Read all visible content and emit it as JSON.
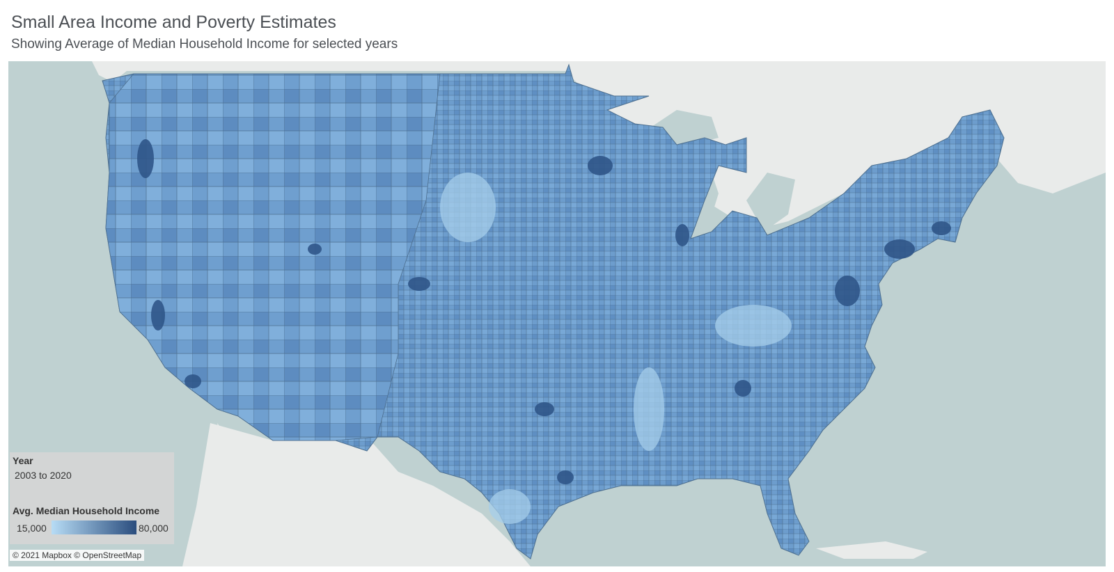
{
  "header": {
    "title": "Small Area Income and Poverty Estimates",
    "subtitle": "Showing Average of Median Household Income for selected years"
  },
  "legend": {
    "year_label": "Year",
    "year_value": "2003 to 2020",
    "income_label": "Avg. Median Household Income",
    "min_label": "15,000",
    "max_label": "80,000",
    "color_low": "#b7dcf5",
    "color_high": "#2a4d7e"
  },
  "attribution": "© 2021 Mapbox © OpenStreetMap",
  "colors": {
    "water": "#bfd1d1",
    "land": "#e9ebea",
    "county_base": "#6d9dcd",
    "county_border": "#4d6f8f"
  }
}
